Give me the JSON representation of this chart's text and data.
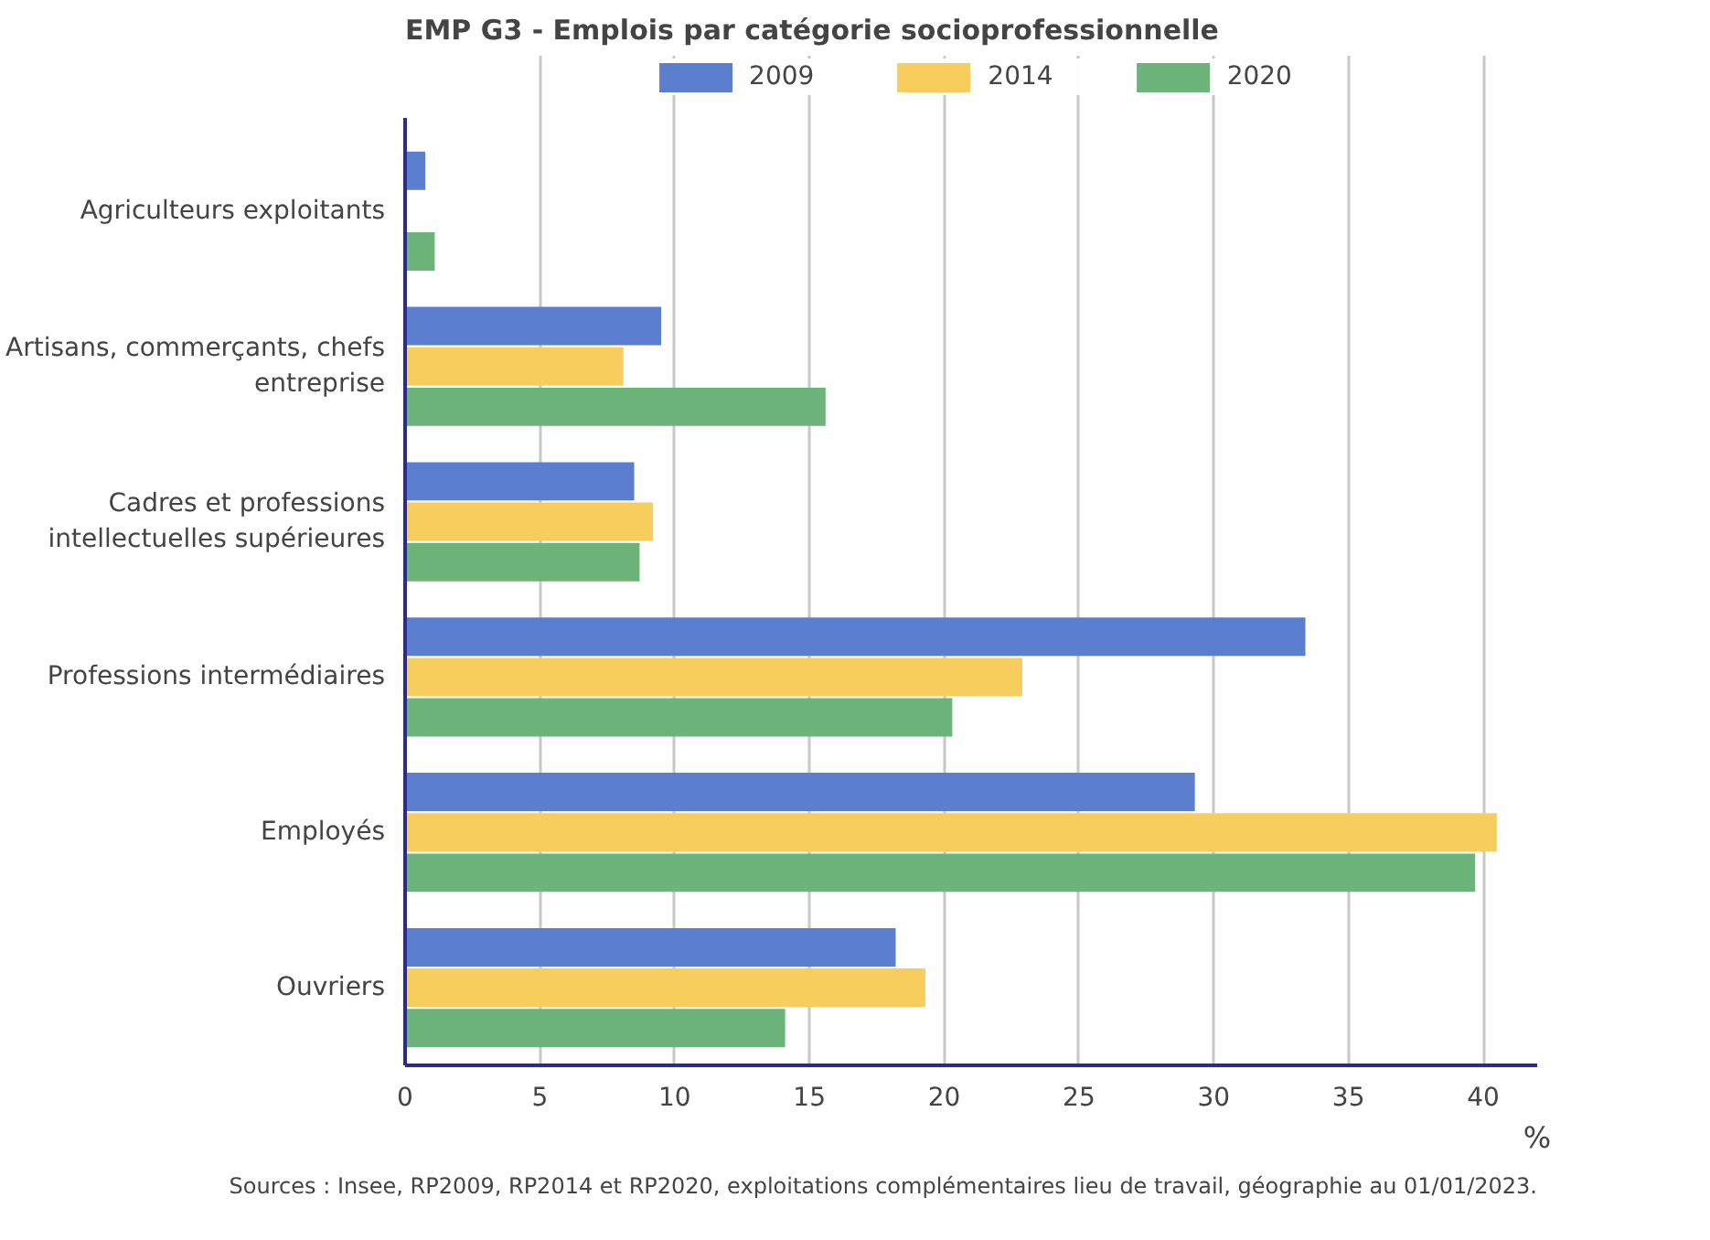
{
  "chart_data": {
    "type": "bar",
    "orientation": "horizontal",
    "title": "EMP G3 - Emplois par catégorie socioprofessionnelle",
    "xlabel": "%",
    "categories": [
      "Agriculteurs exploitants",
      "Artisans, commerçants, chefs entreprise",
      "Cadres et professions intellectuelles supérieures",
      "Professions intermédiaires",
      "Employés",
      "Ouvriers"
    ],
    "series": [
      {
        "name": "2009",
        "color": "#5b7fce",
        "values": [
          0.75,
          9.5,
          8.5,
          33.4,
          29.3,
          18.2
        ]
      },
      {
        "name": "2014",
        "color": "#f7cd5e",
        "values": [
          null,
          8.1,
          9.2,
          22.9,
          40.5,
          19.3
        ]
      },
      {
        "name": "2020",
        "color": "#6db47a",
        "values": [
          1.1,
          15.6,
          8.7,
          20.3,
          39.7,
          14.1
        ]
      }
    ],
    "xlim": [
      0,
      42
    ],
    "xticks": [
      0,
      5,
      10,
      15,
      20,
      25,
      30,
      35,
      40
    ],
    "grid": "x",
    "legend": "top",
    "annotations": [
      "Sources : Insee, RP2009, RP2014 et RP2020, exploitations complémentaires lieu de travail, géographie au 01/01/2023."
    ]
  }
}
